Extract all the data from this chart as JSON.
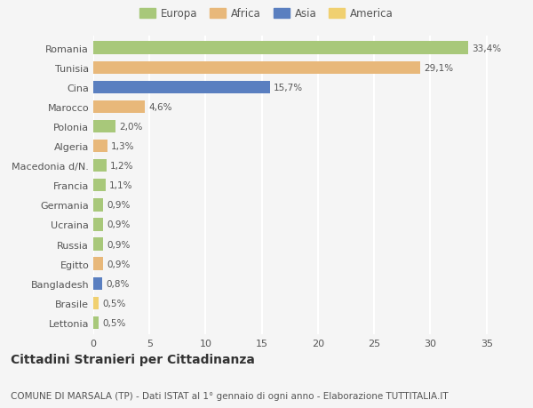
{
  "categories": [
    "Romania",
    "Tunisia",
    "Cina",
    "Marocco",
    "Polonia",
    "Algeria",
    "Macedonia d/N.",
    "Francia",
    "Germania",
    "Ucraina",
    "Russia",
    "Egitto",
    "Bangladesh",
    "Brasile",
    "Lettonia"
  ],
  "values": [
    33.4,
    29.1,
    15.7,
    4.6,
    2.0,
    1.3,
    1.2,
    1.1,
    0.9,
    0.9,
    0.9,
    0.9,
    0.8,
    0.5,
    0.5
  ],
  "labels": [
    "33,4%",
    "29,1%",
    "15,7%",
    "4,6%",
    "2,0%",
    "1,3%",
    "1,2%",
    "1,1%",
    "0,9%",
    "0,9%",
    "0,9%",
    "0,9%",
    "0,8%",
    "0,5%",
    "0,5%"
  ],
  "colors": [
    "#a8c87a",
    "#e8b87a",
    "#5a7fc0",
    "#e8b87a",
    "#a8c87a",
    "#e8b87a",
    "#a8c87a",
    "#a8c87a",
    "#a8c87a",
    "#a8c87a",
    "#a8c87a",
    "#e8b87a",
    "#5a7fc0",
    "#f0d070",
    "#a8c87a"
  ],
  "legend": [
    {
      "label": "Europa",
      "color": "#a8c87a"
    },
    {
      "label": "Africa",
      "color": "#e8b87a"
    },
    {
      "label": "Asia",
      "color": "#5a7fc0"
    },
    {
      "label": "America",
      "color": "#f0d070"
    }
  ],
  "xlim": [
    0,
    37
  ],
  "xticks": [
    0,
    5,
    10,
    15,
    20,
    25,
    30,
    35
  ],
  "title": "Cittadini Stranieri per Cittadinanza",
  "subtitle": "COMUNE DI MARSALA (TP) - Dati ISTAT al 1° gennaio di ogni anno - Elaborazione TUTTITALIA.IT",
  "background_color": "#f5f5f5",
  "grid_color": "#ffffff",
  "bar_height": 0.65,
  "label_fontsize": 7.5,
  "tick_fontsize": 8,
  "title_fontsize": 10,
  "subtitle_fontsize": 7.5
}
